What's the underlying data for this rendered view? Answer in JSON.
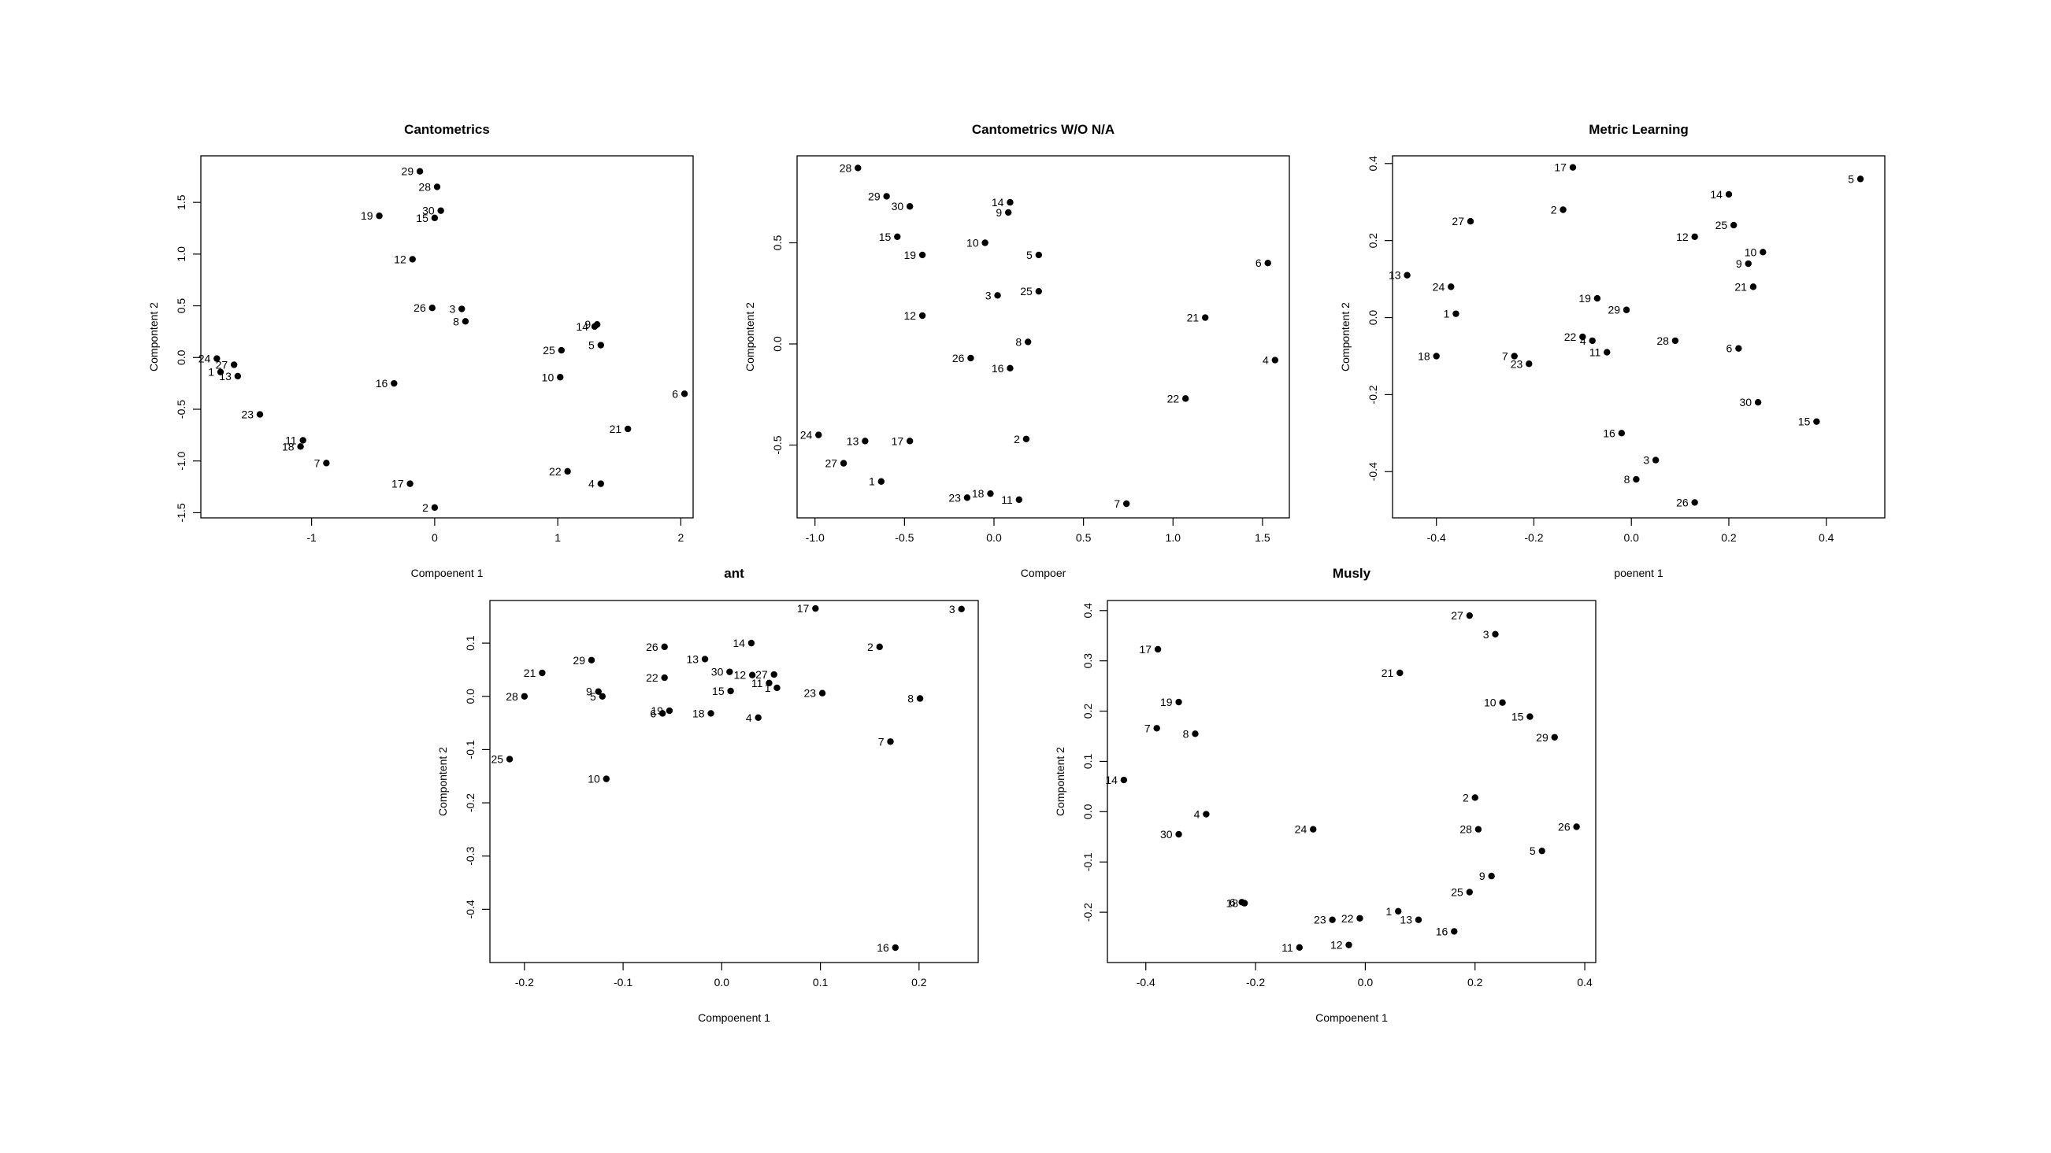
{
  "chart_data": [
    {
      "type": "scatter",
      "title": "Cantometrics",
      "xlabel": "Compoenent 1",
      "ylabel": "Compontent 2",
      "xlim": [
        -1.9,
        2.1
      ],
      "ylim": [
        -1.55,
        1.95
      ],
      "xticks": [
        -1,
        0,
        1,
        2
      ],
      "yticks": [
        -1.5,
        -1.0,
        -0.5,
        0.0,
        0.5,
        1.0,
        1.5
      ],
      "grid": false,
      "points": [
        {
          "label": "29",
          "x": -0.12,
          "y": 1.8
        },
        {
          "label": "28",
          "x": 0.02,
          "y": 1.65
        },
        {
          "label": "30",
          "x": 0.05,
          "y": 1.42
        },
        {
          "label": "19",
          "x": -0.45,
          "y": 1.37
        },
        {
          "label": "15",
          "x": 0.0,
          "y": 1.35
        },
        {
          "label": "12",
          "x": -0.18,
          "y": 0.95
        },
        {
          "label": "26",
          "x": -0.02,
          "y": 0.48
        },
        {
          "label": "3",
          "x": 0.22,
          "y": 0.47
        },
        {
          "label": "8",
          "x": 0.25,
          "y": 0.35
        },
        {
          "label": "14",
          "x": 1.3,
          "y": 0.3
        },
        {
          "label": "9",
          "x": 1.32,
          "y": 0.32
        },
        {
          "label": "25",
          "x": 1.03,
          "y": 0.07
        },
        {
          "label": "5",
          "x": 1.35,
          "y": 0.12
        },
        {
          "label": "24",
          "x": -1.77,
          "y": -0.01
        },
        {
          "label": "27",
          "x": -1.63,
          "y": -0.07
        },
        {
          "label": "1",
          "x": -1.74,
          "y": -0.14
        },
        {
          "label": "13",
          "x": -1.6,
          "y": -0.18
        },
        {
          "label": "16",
          "x": -0.33,
          "y": -0.25
        },
        {
          "label": "10",
          "x": 1.02,
          "y": -0.19
        },
        {
          "label": "6",
          "x": 2.03,
          "y": -0.35
        },
        {
          "label": "23",
          "x": -1.42,
          "y": -0.55
        },
        {
          "label": "21",
          "x": 1.57,
          "y": -0.69
        },
        {
          "label": "11",
          "x": -1.07,
          "y": -0.8
        },
        {
          "label": "18",
          "x": -1.09,
          "y": -0.86
        },
        {
          "label": "7",
          "x": -0.88,
          "y": -1.02
        },
        {
          "label": "22",
          "x": 1.08,
          "y": -1.1
        },
        {
          "label": "17",
          "x": -0.2,
          "y": -1.22
        },
        {
          "label": "4",
          "x": 1.35,
          "y": -1.22
        },
        {
          "label": "2",
          "x": 0.0,
          "y": -1.45
        }
      ]
    },
    {
      "type": "scatter",
      "title": "Cantometrics W/O N/A",
      "xlabel": "Compoer",
      "ylabel": "Compontent 2",
      "xlim": [
        -1.1,
        1.65
      ],
      "ylim": [
        -0.86,
        0.93
      ],
      "xticks": [
        -1.0,
        -0.5,
        0.0,
        0.5,
        1.0,
        1.5
      ],
      "yticks": [
        -0.5,
        0.0,
        0.5
      ],
      "grid": false,
      "points": [
        {
          "label": "28",
          "x": -0.76,
          "y": 0.87
        },
        {
          "label": "29",
          "x": -0.6,
          "y": 0.73
        },
        {
          "label": "30",
          "x": -0.47,
          "y": 0.68
        },
        {
          "label": "14",
          "x": 0.09,
          "y": 0.7
        },
        {
          "label": "9",
          "x": 0.08,
          "y": 0.65
        },
        {
          "label": "15",
          "x": -0.54,
          "y": 0.53
        },
        {
          "label": "10",
          "x": -0.05,
          "y": 0.5
        },
        {
          "label": "19",
          "x": -0.4,
          "y": 0.44
        },
        {
          "label": "5",
          "x": 0.25,
          "y": 0.44
        },
        {
          "label": "6",
          "x": 1.53,
          "y": 0.4
        },
        {
          "label": "25",
          "x": 0.25,
          "y": 0.26
        },
        {
          "label": "3",
          "x": 0.02,
          "y": 0.24
        },
        {
          "label": "12",
          "x": -0.4,
          "y": 0.14
        },
        {
          "label": "21",
          "x": 1.18,
          "y": 0.13
        },
        {
          "label": "8",
          "x": 0.19,
          "y": 0.01
        },
        {
          "label": "26",
          "x": -0.13,
          "y": -0.07
        },
        {
          "label": "4",
          "x": 1.57,
          "y": -0.08
        },
        {
          "label": "16",
          "x": 0.09,
          "y": -0.12
        },
        {
          "label": "22",
          "x": 1.07,
          "y": -0.27
        },
        {
          "label": "24",
          "x": -0.98,
          "y": -0.45
        },
        {
          "label": "2",
          "x": 0.18,
          "y": -0.47
        },
        {
          "label": "13",
          "x": -0.72,
          "y": -0.48
        },
        {
          "label": "17",
          "x": -0.47,
          "y": -0.48
        },
        {
          "label": "27",
          "x": -0.84,
          "y": -0.59
        },
        {
          "label": "1",
          "x": -0.63,
          "y": -0.68
        },
        {
          "label": "18",
          "x": -0.02,
          "y": -0.74
        },
        {
          "label": "23",
          "x": -0.15,
          "y": -0.76
        },
        {
          "label": "11",
          "x": 0.14,
          "y": -0.77
        },
        {
          "label": "7",
          "x": 0.74,
          "y": -0.79
        }
      ]
    },
    {
      "type": "scatter",
      "title": "Metric Learning",
      "xlabel": "poenent 1",
      "ylabel": "Compontent 2",
      "xlim": [
        -0.49,
        0.52
      ],
      "ylim": [
        -0.52,
        0.42
      ],
      "xticks": [
        -0.4,
        -0.2,
        0.0,
        0.2,
        0.4
      ],
      "yticks": [
        -0.4,
        -0.2,
        0.0,
        0.2,
        0.4
      ],
      "grid": false,
      "points": [
        {
          "label": "17",
          "x": -0.12,
          "y": 0.39
        },
        {
          "label": "5",
          "x": 0.47,
          "y": 0.36
        },
        {
          "label": "14",
          "x": 0.2,
          "y": 0.32
        },
        {
          "label": "2",
          "x": -0.14,
          "y": 0.28
        },
        {
          "label": "27",
          "x": -0.33,
          "y": 0.25
        },
        {
          "label": "25",
          "x": 0.21,
          "y": 0.24
        },
        {
          "label": "12",
          "x": 0.13,
          "y": 0.21
        },
        {
          "label": "10",
          "x": 0.27,
          "y": 0.17
        },
        {
          "label": "9",
          "x": 0.24,
          "y": 0.14
        },
        {
          "label": "13",
          "x": -0.46,
          "y": 0.11
        },
        {
          "label": "21",
          "x": 0.25,
          "y": 0.08
        },
        {
          "label": "24",
          "x": -0.37,
          "y": 0.08
        },
        {
          "label": "19",
          "x": -0.07,
          "y": 0.05
        },
        {
          "label": "29",
          "x": -0.01,
          "y": 0.02
        },
        {
          "label": "1",
          "x": -0.36,
          "y": 0.01
        },
        {
          "label": "22",
          "x": -0.1,
          "y": -0.05
        },
        {
          "label": "4",
          "x": -0.08,
          "y": -0.06
        },
        {
          "label": "28",
          "x": 0.09,
          "y": -0.06
        },
        {
          "label": "6",
          "x": 0.22,
          "y": -0.08
        },
        {
          "label": "11",
          "x": -0.05,
          "y": -0.09
        },
        {
          "label": "18",
          "x": -0.4,
          "y": -0.1
        },
        {
          "label": "7",
          "x": -0.24,
          "y": -0.1
        },
        {
          "label": "23",
          "x": -0.21,
          "y": -0.12
        },
        {
          "label": "30",
          "x": 0.26,
          "y": -0.22
        },
        {
          "label": "15",
          "x": 0.38,
          "y": -0.27
        },
        {
          "label": "16",
          "x": -0.02,
          "y": -0.3
        },
        {
          "label": "3",
          "x": 0.05,
          "y": -0.37
        },
        {
          "label": "8",
          "x": 0.01,
          "y": -0.42
        },
        {
          "label": "26",
          "x": 0.13,
          "y": -0.48
        }
      ]
    },
    {
      "type": "scatter",
      "title": "ant",
      "xlabel": "Compoenent 1",
      "ylabel": "Compontent 2",
      "xlim": [
        -0.235,
        0.26
      ],
      "ylim": [
        -0.5,
        0.18
      ],
      "xticks": [
        -0.2,
        -0.1,
        0.0,
        0.1,
        0.2
      ],
      "yticks": [
        -0.4,
        -0.3,
        -0.2,
        -0.1,
        0.0,
        0.1
      ],
      "grid": false,
      "points": [
        {
          "label": "17",
          "x": 0.095,
          "y": 0.165
        },
        {
          "label": "3",
          "x": 0.243,
          "y": 0.164
        },
        {
          "label": "14",
          "x": 0.03,
          "y": 0.1
        },
        {
          "label": "2",
          "x": 0.16,
          "y": 0.093
        },
        {
          "label": "26",
          "x": -0.058,
          "y": 0.093
        },
        {
          "label": "13",
          "x": -0.017,
          "y": 0.07
        },
        {
          "label": "29",
          "x": -0.132,
          "y": 0.068
        },
        {
          "label": "21",
          "x": -0.182,
          "y": 0.044
        },
        {
          "label": "30",
          "x": 0.008,
          "y": 0.046
        },
        {
          "label": "12",
          "x": 0.031,
          "y": 0.04
        },
        {
          "label": "27",
          "x": 0.053,
          "y": 0.041
        },
        {
          "label": "22",
          "x": -0.058,
          "y": 0.035
        },
        {
          "label": "11",
          "x": 0.048,
          "y": 0.025
        },
        {
          "label": "1",
          "x": 0.056,
          "y": 0.016
        },
        {
          "label": "15",
          "x": 0.009,
          "y": 0.01
        },
        {
          "label": "9",
          "x": -0.125,
          "y": 0.009
        },
        {
          "label": "23",
          "x": 0.102,
          "y": 0.006
        },
        {
          "label": "28",
          "x": -0.2,
          "y": 0.0
        },
        {
          "label": "5",
          "x": -0.121,
          "y": 0.0
        },
        {
          "label": "8",
          "x": 0.201,
          "y": -0.004
        },
        {
          "label": "19",
          "x": -0.053,
          "y": -0.027
        },
        {
          "label": "6",
          "x": -0.06,
          "y": -0.032
        },
        {
          "label": "18",
          "x": -0.011,
          "y": -0.032
        },
        {
          "label": "4",
          "x": 0.037,
          "y": -0.04
        },
        {
          "label": "7",
          "x": 0.171,
          "y": -0.085
        },
        {
          "label": "25",
          "x": -0.215,
          "y": -0.118
        },
        {
          "label": "10",
          "x": -0.117,
          "y": -0.155
        },
        {
          "label": "16",
          "x": 0.176,
          "y": -0.472
        }
      ]
    },
    {
      "type": "scatter",
      "title": "Musly",
      "xlabel": "Compoenent 1",
      "ylabel": "Compontent 2",
      "xlim": [
        -0.47,
        0.42
      ],
      "ylim": [
        -0.3,
        0.42
      ],
      "xticks": [
        -0.4,
        -0.2,
        0.0,
        0.2,
        0.4
      ],
      "yticks": [
        -0.2,
        -0.1,
        0.0,
        0.1,
        0.2,
        0.3,
        0.4
      ],
      "grid": false,
      "points": [
        {
          "label": "27",
          "x": 0.19,
          "y": 0.39
        },
        {
          "label": "3",
          "x": 0.237,
          "y": 0.353
        },
        {
          "label": "17",
          "x": -0.378,
          "y": 0.323
        },
        {
          "label": "21",
          "x": 0.063,
          "y": 0.276
        },
        {
          "label": "19",
          "x": -0.34,
          "y": 0.218
        },
        {
          "label": "10",
          "x": 0.25,
          "y": 0.217
        },
        {
          "label": "15",
          "x": 0.3,
          "y": 0.189
        },
        {
          "label": "7",
          "x": -0.38,
          "y": 0.166
        },
        {
          "label": "8",
          "x": -0.31,
          "y": 0.155
        },
        {
          "label": "29",
          "x": 0.345,
          "y": 0.148
        },
        {
          "label": "14",
          "x": -0.44,
          "y": 0.063
        },
        {
          "label": "2",
          "x": 0.2,
          "y": 0.028
        },
        {
          "label": "4",
          "x": -0.29,
          "y": -0.005
        },
        {
          "label": "24",
          "x": -0.095,
          "y": -0.035
        },
        {
          "label": "28",
          "x": 0.206,
          "y": -0.035
        },
        {
          "label": "26",
          "x": 0.385,
          "y": -0.03
        },
        {
          "label": "30",
          "x": -0.34,
          "y": -0.045
        },
        {
          "label": "5",
          "x": 0.322,
          "y": -0.078
        },
        {
          "label": "9",
          "x": 0.23,
          "y": -0.128
        },
        {
          "label": "25",
          "x": 0.19,
          "y": -0.16
        },
        {
          "label": "18",
          "x": -0.22,
          "y": -0.182
        },
        {
          "label": "6",
          "x": -0.225,
          "y": -0.18
        },
        {
          "label": "1",
          "x": 0.06,
          "y": -0.198
        },
        {
          "label": "22",
          "x": -0.01,
          "y": -0.212
        },
        {
          "label": "23",
          "x": -0.06,
          "y": -0.215
        },
        {
          "label": "13",
          "x": 0.097,
          "y": -0.215
        },
        {
          "label": "16",
          "x": 0.162,
          "y": -0.238
        },
        {
          "label": "12",
          "x": -0.03,
          "y": -0.265
        },
        {
          "label": "11",
          "x": -0.12,
          "y": -0.27
        }
      ]
    }
  ]
}
